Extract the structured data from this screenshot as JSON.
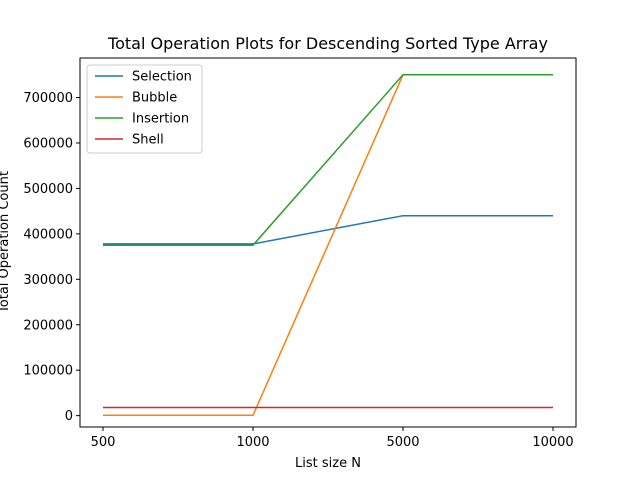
{
  "chart_data": {
    "type": "line",
    "title": "Total Operation Plots for Descending Sorted Type Array",
    "xlabel": "List size N",
    "ylabel": "Total Operation Count",
    "categories": [
      "500",
      "1000",
      "5000",
      "10000"
    ],
    "ylim": [
      -25000,
      787000
    ],
    "yticks": [
      0,
      100000,
      200000,
      300000,
      400000,
      500000,
      600000,
      700000
    ],
    "legend_position": "top-left",
    "grid": false,
    "series": [
      {
        "name": "Selection",
        "color": "#1f77b4",
        "values": [
          378000,
          378000,
          440000,
          440000
        ]
      },
      {
        "name": "Bubble",
        "color": "#ff7f0e",
        "values": [
          1000,
          1000,
          750000,
          750000
        ]
      },
      {
        "name": "Insertion",
        "color": "#2ca02c",
        "values": [
          375000,
          375000,
          750000,
          750000
        ]
      },
      {
        "name": "Shell",
        "color": "#d62728",
        "values": [
          18000,
          18000,
          18000,
          18000
        ]
      }
    ]
  }
}
